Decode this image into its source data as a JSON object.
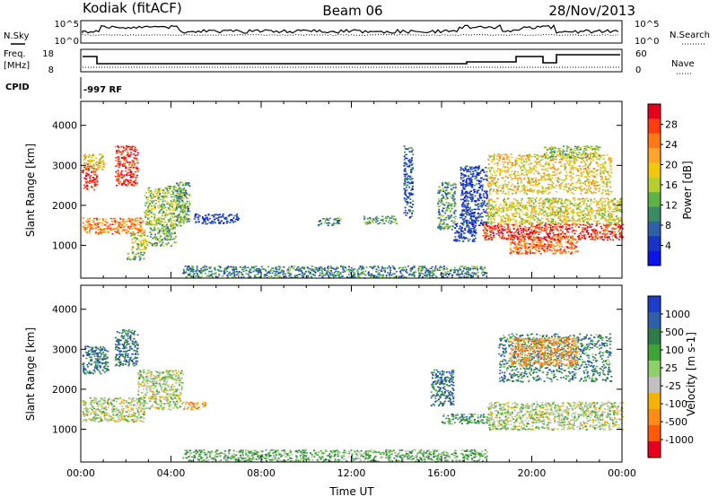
{
  "header": {
    "station": "Kodiak (fitACF)",
    "beam": "Beam 06",
    "date": "28/Nov/2013"
  },
  "side_labels": {
    "nsky": "N.Sky",
    "nsearch": "N.Search",
    "freq_line1": "Freq.",
    "freq_line2": "[MHz]",
    "nave": "Nave",
    "cpid": "CPID",
    "cpid_value": "-997 RF"
  },
  "small_axes": {
    "noise_left_ticks": [
      "10^5",
      "10^0"
    ],
    "noise_right_ticks": [
      "10^5",
      "10^0"
    ],
    "freq_left_ticks": [
      "18",
      "8"
    ],
    "nave_right_ticks": [
      "60",
      "0"
    ]
  },
  "chart_data": [
    {
      "type": "heatmap",
      "title": "",
      "xlabel": "",
      "ylabel": "Slant Range [km]",
      "xlim": [
        0,
        24
      ],
      "ylim": [
        180,
        4600
      ],
      "yticks": [
        "1000",
        "2000",
        "3000",
        "4000"
      ],
      "colorbar": {
        "label": "Power [dB]",
        "ticks": [
          "28",
          "24",
          "20",
          "16",
          "12",
          "8",
          "4"
        ],
        "colors": [
          "#e6001e",
          "#ff3d0f",
          "#ff7a14",
          "#ffa52a",
          "#f2c80d",
          "#b7cf2e",
          "#5fb244",
          "#3a8a66",
          "#2f5fa8",
          "#1932c8",
          "#0a14e6"
        ]
      },
      "regions": [
        {
          "t": [
            0.05,
            0.7
          ],
          "r": [
            2400,
            3050
          ],
          "level": 0.9
        },
        {
          "t": [
            0.1,
            1.0
          ],
          "r": [
            2900,
            3300
          ],
          "level": 0.6
        },
        {
          "t": [
            0.05,
            2.8
          ],
          "r": [
            1300,
            1700
          ],
          "level": 0.75
        },
        {
          "t": [
            1.5,
            2.5
          ],
          "r": [
            2500,
            3500
          ],
          "level": 0.9
        },
        {
          "t": [
            2.2,
            3.0
          ],
          "r": [
            900,
            1300
          ],
          "level": 0.5
        },
        {
          "t": [
            2.0,
            2.8
          ],
          "r": [
            650,
            850
          ],
          "level": 0.4
        },
        {
          "t": [
            2.8,
            4.6
          ],
          "r": [
            1500,
            2500
          ],
          "level": 0.45
        },
        {
          "t": [
            3.0,
            4.2
          ],
          "r": [
            1000,
            1500
          ],
          "level": 0.4
        },
        {
          "t": [
            4.2,
            4.8
          ],
          "r": [
            1600,
            2600
          ],
          "level": 0.35
        },
        {
          "t": [
            5.0,
            7.0
          ],
          "r": [
            1550,
            1800
          ],
          "level": 0.15
        },
        {
          "t": [
            10.5,
            11.5
          ],
          "r": [
            1500,
            1700
          ],
          "level": 0.3
        },
        {
          "t": [
            12.5,
            14.0
          ],
          "r": [
            1550,
            1750
          ],
          "level": 0.35
        },
        {
          "t": [
            14.3,
            14.7
          ],
          "r": [
            1700,
            3500
          ],
          "level": 0.2
        },
        {
          "t": [
            15.8,
            16.6
          ],
          "r": [
            1400,
            2600
          ],
          "level": 0.35
        },
        {
          "t": [
            16.5,
            17.5
          ],
          "r": [
            1100,
            1600
          ],
          "level": 0.15
        },
        {
          "t": [
            16.8,
            18.0
          ],
          "r": [
            1500,
            3000
          ],
          "level": 0.15
        },
        {
          "t": [
            17.8,
            24.0
          ],
          "r": [
            1150,
            1550
          ],
          "level": 0.9
        },
        {
          "t": [
            19.0,
            22.0
          ],
          "r": [
            800,
            1250
          ],
          "level": 0.8
        },
        {
          "t": [
            18.0,
            24.0
          ],
          "r": [
            1550,
            2200
          ],
          "level": 0.55
        },
        {
          "t": [
            18.0,
            23.5
          ],
          "r": [
            2300,
            3300
          ],
          "level": 0.6
        },
        {
          "t": [
            20.5,
            23.0
          ],
          "r": [
            3200,
            3500
          ],
          "level": 0.45
        },
        {
          "t": [
            4.5,
            18.0
          ],
          "r": [
            200,
            500
          ],
          "level": 0.3
        }
      ]
    },
    {
      "type": "heatmap",
      "title": "",
      "xlabel": "Time UT",
      "ylabel": "Slant Range [km]",
      "xlim": [
        0,
        24
      ],
      "ylim": [
        180,
        4600
      ],
      "xticks": [
        "00:00",
        "04:00",
        "08:00",
        "12:00",
        "16:00",
        "20:00",
        "00:00"
      ],
      "yticks": [
        "1000",
        "2000",
        "3000",
        "4000"
      ],
      "colorbar": {
        "label": "Velocity [m s-1]",
        "ticks": [
          "1000",
          "500",
          "100",
          "25",
          "-25",
          "-100",
          "-500",
          "-1000"
        ],
        "colors": [
          "#1e3cc8",
          "#2f5fa8",
          "#2f7a4a",
          "#3fa33a",
          "#8fd06a",
          "#c0c0c0",
          "#f2b400",
          "#ff8c14",
          "#ff5a0a",
          "#e6001e"
        ]
      },
      "regions": [
        {
          "t": [
            0.05,
            2.8
          ],
          "r": [
            1200,
            1800
          ],
          "level": 0.5
        },
        {
          "t": [
            0.05,
            1.2
          ],
          "r": [
            2400,
            3100
          ],
          "level": 0.8
        },
        {
          "t": [
            1.5,
            2.5
          ],
          "r": [
            2600,
            3500
          ],
          "level": 0.8
        },
        {
          "t": [
            2.5,
            4.5
          ],
          "r": [
            1500,
            2500
          ],
          "level": 0.5
        },
        {
          "t": [
            4.5,
            5.5
          ],
          "r": [
            1500,
            1700
          ],
          "level": 0.3
        },
        {
          "t": [
            15.5,
            16.5
          ],
          "r": [
            1600,
            2500
          ],
          "level": 0.8
        },
        {
          "t": [
            16.0,
            18.0
          ],
          "r": [
            1150,
            1400
          ],
          "level": 0.7
        },
        {
          "t": [
            18.0,
            24.0
          ],
          "r": [
            1000,
            1700
          ],
          "level": 0.5
        },
        {
          "t": [
            18.5,
            23.5
          ],
          "r": [
            2200,
            3400
          ],
          "level": 0.75
        },
        {
          "t": [
            19.0,
            22.0
          ],
          "r": [
            2600,
            3300
          ],
          "level": 0.3
        },
        {
          "t": [
            4.5,
            18.0
          ],
          "r": [
            200,
            500
          ],
          "level": 0.62
        }
      ]
    }
  ]
}
